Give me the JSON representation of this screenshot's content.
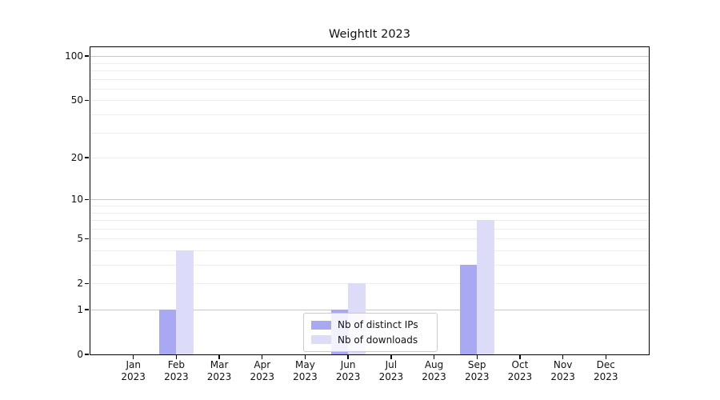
{
  "title": "WeightIt 2023",
  "chart_data": {
    "type": "bar",
    "title": "WeightIt 2023",
    "categories": [
      "Jan",
      "Feb",
      "Mar",
      "Apr",
      "May",
      "Jun",
      "Jul",
      "Aug",
      "Sep",
      "Oct",
      "Nov",
      "Dec"
    ],
    "x_year": "2023",
    "series": [
      {
        "name": "Nb of distinct IPs",
        "color": "#a8a8f3",
        "values": [
          0,
          1,
          0,
          0,
          0,
          1,
          0,
          0,
          3,
          0,
          0,
          0
        ]
      },
      {
        "name": "Nb of downloads",
        "color": "#dcdcf8",
        "values": [
          0,
          4,
          0,
          0,
          0,
          2,
          0,
          0,
          7,
          0,
          0,
          0
        ]
      }
    ],
    "xlabel": "",
    "ylabel": "",
    "yscale": "log1p",
    "yticks": [
      0,
      1,
      2,
      5,
      10,
      20,
      50,
      100
    ],
    "ylim": [
      0,
      115
    ],
    "grid": "horizontal",
    "major_grid_values": [
      1,
      10,
      100
    ],
    "minor_grid_values": [
      2,
      3,
      4,
      5,
      6,
      7,
      8,
      9,
      20,
      30,
      40,
      50,
      60,
      70,
      80,
      90
    ],
    "legend_position": "lower center",
    "colors": {
      "major_grid": "#c6c6c6",
      "minor_grid": "#ededed",
      "axis": "#000000",
      "background": "#ffffff"
    }
  }
}
